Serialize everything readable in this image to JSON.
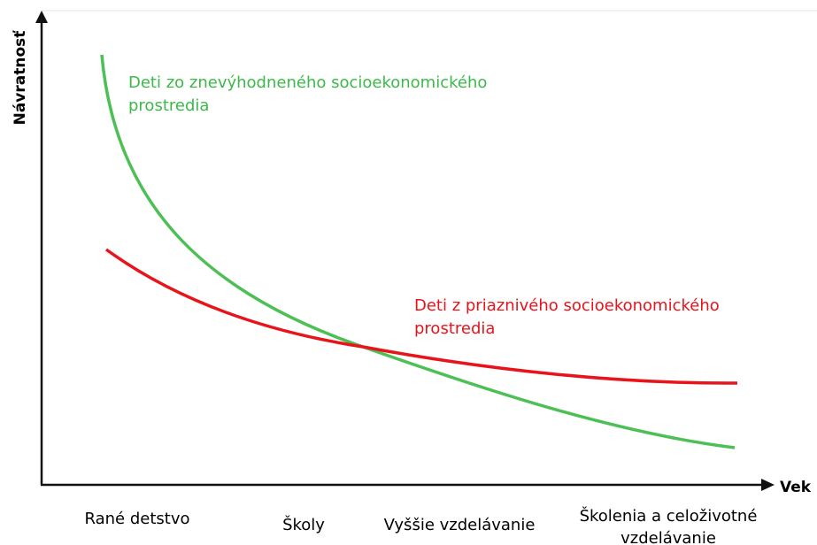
{
  "y_axis_label": "Návratnosť",
  "x_axis_label": "Vek",
  "curves": [
    {
      "label_lines": [
        "Deti zo znevýhodneného socioekonomického",
        "prostredia"
      ]
    },
    {
      "label_lines": [
        "Deti z priaznivého socioekonomického",
        "prostredia"
      ]
    }
  ],
  "stages": [
    {
      "lines": [
        "Rané detstvo"
      ]
    },
    {
      "lines": [
        "Školy"
      ]
    },
    {
      "lines": [
        "Vyššie vzdelávanie"
      ]
    },
    {
      "lines": [
        "Školenia a celoživotné",
        "vzdelávanie"
      ]
    }
  ]
}
